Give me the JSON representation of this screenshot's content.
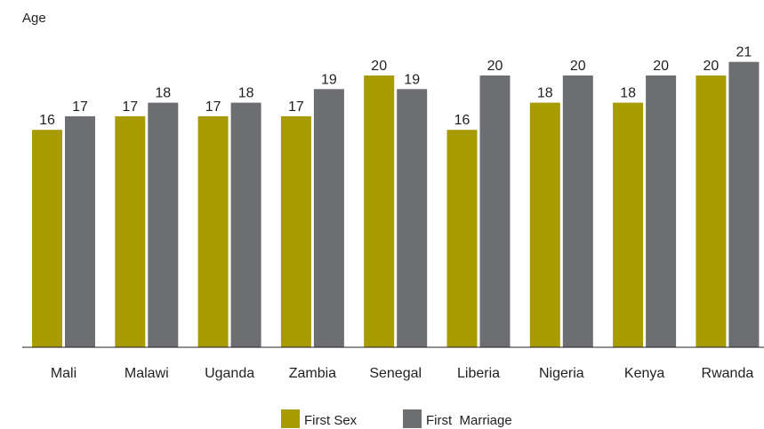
{
  "chart_data": {
    "type": "bar",
    "title": "",
    "xlabel": "",
    "ylabel": "Age",
    "categories": [
      "Mali",
      "Malawi",
      "Uganda",
      "Zambia",
      "Senegal",
      "Liberia",
      "Nigeria",
      "Kenya",
      "Rwanda"
    ],
    "series": [
      {
        "name": "First Sex",
        "color": "#a89b00",
        "values": [
          16,
          17,
          17,
          17,
          20,
          16,
          18,
          18,
          20
        ]
      },
      {
        "name": "First  Marriage",
        "color": "#6d6e71",
        "values": [
          17,
          18,
          18,
          19,
          19,
          20,
          20,
          20,
          21
        ]
      }
    ],
    "ylim": [
      0,
      25
    ],
    "grid": false,
    "legend_position": "bottom-center"
  }
}
